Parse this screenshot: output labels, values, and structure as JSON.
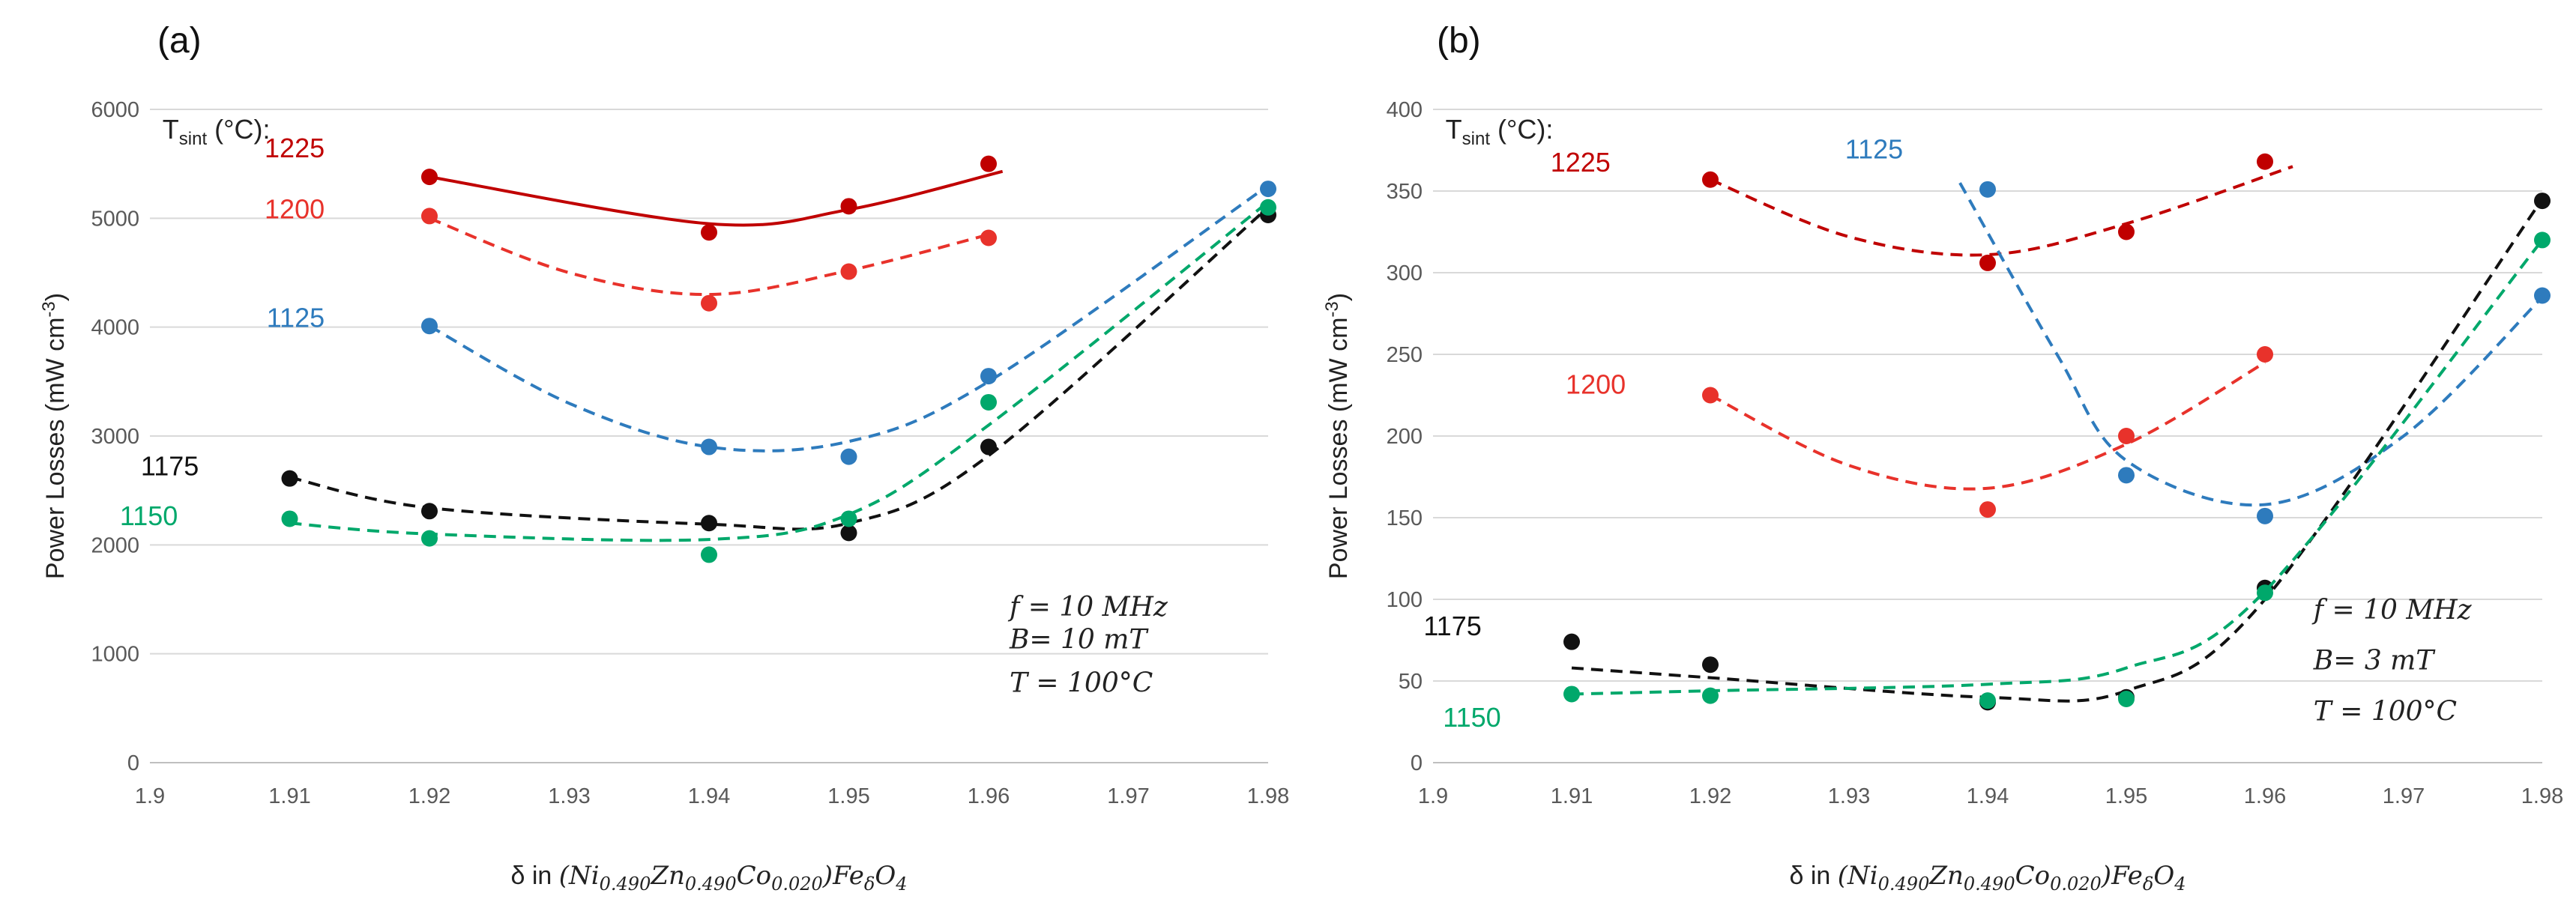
{
  "chart_data": [
    {
      "panel": "(a)",
      "type": "scatter",
      "ylabel": "Power Losses (mW cm",
      "ylabel_sup": "-3",
      "ylabel_close": ")",
      "xlabel_prefix": "δ in",
      "xlabel_formula": "(Ni0.490Zn0.490Co0.020)FeδO4",
      "xlim": [
        1.9,
        1.98
      ],
      "ylim": [
        0,
        6000
      ],
      "xticks": [
        "1.9",
        "1.91",
        "1.92",
        "1.93",
        "1.94",
        "1.95",
        "1.96",
        "1.97",
        "1.98"
      ],
      "yticks": [
        "0",
        "1000",
        "2000",
        "3000",
        "4000",
        "5000",
        "6000"
      ],
      "tsint_label": "T",
      "tsint_sub": "sint",
      "tsint_unit": " (°C):",
      "conditions": [
        "f = 10 MHz",
        "B= 10 mT",
        "T = 100°C"
      ],
      "series": [
        {
          "name": "1225",
          "color": "#c00000",
          "dash": false,
          "x": [
            1.92,
            1.94,
            1.95,
            1.96
          ],
          "y": [
            5380,
            4870,
            5110,
            5500
          ],
          "fit_x": [
            1.92,
            1.94,
            1.95,
            1.961
          ],
          "fit_y": [
            5380,
            4950,
            5080,
            5430
          ]
        },
        {
          "name": "1200",
          "color": "#e8322b",
          "dash": true,
          "x": [
            1.92,
            1.94,
            1.95,
            1.96
          ],
          "y": [
            5020,
            4220,
            4510,
            4820
          ],
          "fit_x": [
            1.92,
            1.93,
            1.94,
            1.95,
            1.96
          ],
          "fit_y": [
            5000,
            4500,
            4300,
            4520,
            4850
          ]
        },
        {
          "name": "1125",
          "color": "#2e7bbd",
          "dash": true,
          "x": [
            1.92,
            1.94,
            1.95,
            1.96,
            1.98
          ],
          "y": [
            4010,
            2900,
            2810,
            3550,
            5270
          ],
          "fit_x": [
            1.92,
            1.93,
            1.94,
            1.95,
            1.96,
            1.98
          ],
          "fit_y": [
            4010,
            3300,
            2900,
            2950,
            3500,
            5300
          ]
        },
        {
          "name": "1175",
          "color": "#111111",
          "dash": true,
          "x": [
            1.91,
            1.92,
            1.94,
            1.95,
            1.96,
            1.98
          ],
          "y": [
            2610,
            2310,
            2200,
            2110,
            2900,
            5030
          ],
          "fit_x": [
            1.91,
            1.92,
            1.94,
            1.95,
            1.96,
            1.98
          ],
          "fit_y": [
            2620,
            2340,
            2190,
            2200,
            2820,
            5100
          ]
        },
        {
          "name": "1150",
          "color": "#00a86b",
          "dash": true,
          "x": [
            1.91,
            1.92,
            1.94,
            1.95,
            1.96,
            1.98
          ],
          "y": [
            2240,
            2060,
            1910,
            2240,
            3310,
            5100
          ],
          "fit_x": [
            1.91,
            1.92,
            1.94,
            1.95,
            1.96,
            1.98
          ],
          "fit_y": [
            2200,
            2100,
            2050,
            2280,
            3100,
            5150
          ]
        }
      ]
    },
    {
      "panel": "(b)",
      "type": "scatter",
      "ylabel": "Power Losses (mW cm",
      "ylabel_sup": "-3",
      "ylabel_close": ")",
      "xlabel_prefix": "δ in",
      "xlabel_formula": "(Ni0.490Zn0.490Co0.020)FeδO4",
      "xlim": [
        1.9,
        1.98
      ],
      "ylim": [
        0,
        400
      ],
      "xticks": [
        "1.9",
        "1.91",
        "1.92",
        "1.93",
        "1.94",
        "1.95",
        "1.96",
        "1.97",
        "1.98"
      ],
      "yticks": [
        "0",
        "50",
        "100",
        "150",
        "200",
        "250",
        "300",
        "350",
        "400"
      ],
      "tsint_label": "T",
      "tsint_sub": "sint",
      "tsint_unit": " (°C):",
      "conditions": [
        "f = 10 MHz",
        "B= 3 mT",
        "T = 100°C"
      ],
      "series": [
        {
          "name": "1225",
          "color": "#c00000",
          "dash": true,
          "x": [
            1.92,
            1.94,
            1.95,
            1.96
          ],
          "y": [
            357,
            306,
            325,
            368
          ],
          "fit_x": [
            1.92,
            1.93,
            1.94,
            1.95,
            1.962
          ],
          "fit_y": [
            357,
            322,
            311,
            330,
            365
          ]
        },
        {
          "name": "1125",
          "color": "#2e7bbd",
          "dash": true,
          "x": [
            1.94,
            1.95,
            1.96,
            1.98
          ],
          "y": [
            351,
            176,
            151,
            286
          ],
          "fit_x": [
            1.938,
            1.945,
            1.95,
            1.96,
            1.97,
            1.98
          ],
          "fit_y": [
            355,
            250,
            185,
            158,
            200,
            285
          ]
        },
        {
          "name": "1200",
          "color": "#e8322b",
          "dash": true,
          "x": [
            1.92,
            1.94,
            1.95,
            1.96
          ],
          "y": [
            225,
            155,
            200,
            250
          ],
          "fit_x": [
            1.92,
            1.93,
            1.94,
            1.95,
            1.96
          ],
          "fit_y": [
            225,
            182,
            168,
            195,
            245
          ]
        },
        {
          "name": "1175",
          "color": "#111111",
          "dash": true,
          "x": [
            1.91,
            1.92,
            1.94,
            1.95,
            1.96,
            1.98
          ],
          "y": [
            74,
            60,
            37,
            40,
            107,
            344
          ],
          "fit_x": [
            1.91,
            1.92,
            1.94,
            1.95,
            1.96,
            1.98
          ],
          "fit_y": [
            58,
            52,
            40,
            44,
            100,
            345
          ]
        },
        {
          "name": "1150",
          "color": "#00a86b",
          "dash": true,
          "x": [
            1.91,
            1.92,
            1.94,
            1.95,
            1.96,
            1.98
          ],
          "y": [
            42,
            41,
            38,
            39,
            104,
            320
          ],
          "fit_x": [
            1.91,
            1.92,
            1.94,
            1.95,
            1.96,
            1.98
          ],
          "fit_y": [
            42,
            44,
            48,
            58,
            105,
            320
          ]
        }
      ]
    }
  ]
}
